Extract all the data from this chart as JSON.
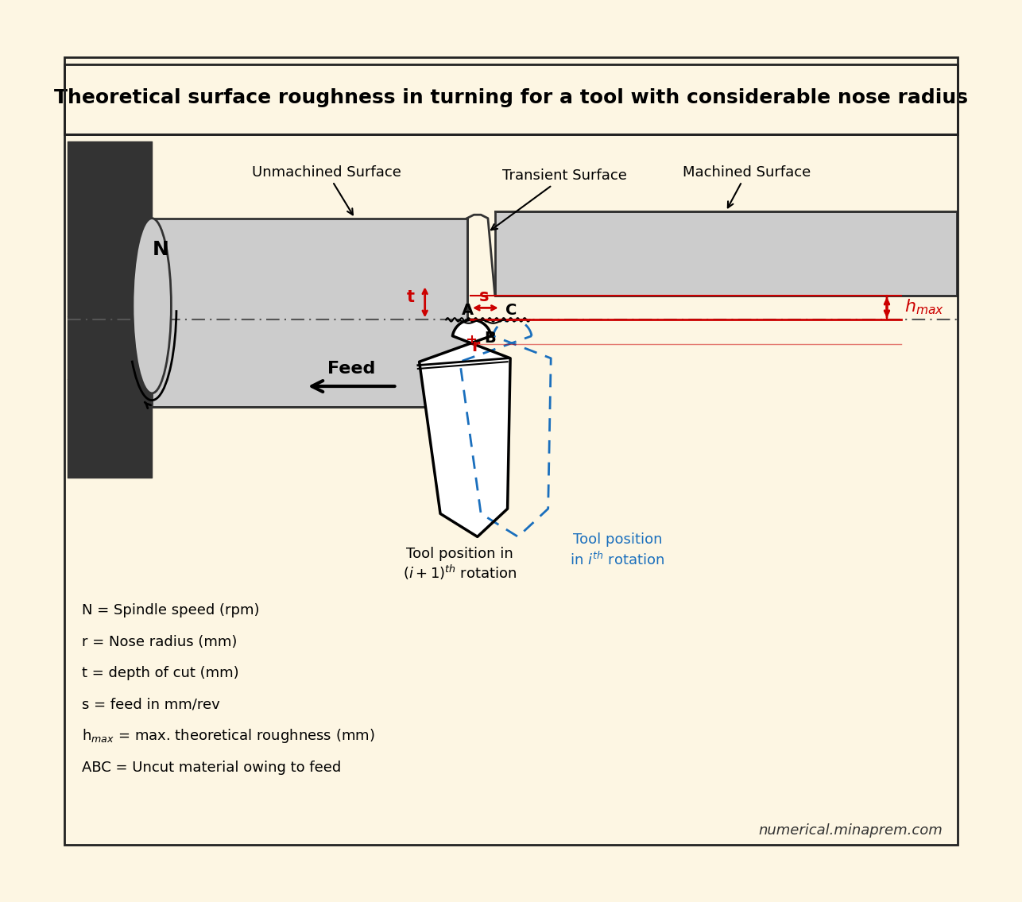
{
  "title": "Theoretical surface roughness in turning for a tool with considerable nose radius",
  "title_fontsize": 18,
  "bg_color": "#fdf6e3",
  "border_color": "#222222",
  "workpiece_color": "#cccccc",
  "workpiece_dark": "#333333",
  "red_color": "#cc0000",
  "blue_dashed_color": "#1a6fbd",
  "legend_lines": [
    "N = Spindle speed (rpm)",
    "r = Nose radius (mm)",
    "t = depth of cut (mm)",
    "s = feed in mm/rev",
    "h_max = max. theoretical roughness (mm)",
    "ABC = Uncut material owing to feed"
  ],
  "watermark": "numerical.minaprem.com"
}
